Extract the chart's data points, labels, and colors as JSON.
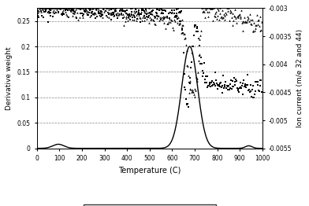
{
  "xlabel": "Temperature (C)",
  "ylabel_left": "Derivative weight",
  "ylabel_right": "Ion current (m/e 32 and 44)",
  "xlim": [
    0,
    1000
  ],
  "ylim_left": [
    0,
    0.275
  ],
  "ylim_right": [
    -0.0055,
    -0.003
  ],
  "yticks_left": [
    0,
    0.05,
    0.1,
    0.15,
    0.2,
    0.25
  ],
  "yticks_right": [
    -0.003,
    -0.0035,
    -0.004,
    -0.0045,
    -0.005,
    -0.0055
  ],
  "xticks": [
    0,
    100,
    200,
    300,
    400,
    500,
    600,
    700,
    800,
    900,
    1000
  ],
  "background_color": "#ffffff",
  "grid_color": "#888888"
}
